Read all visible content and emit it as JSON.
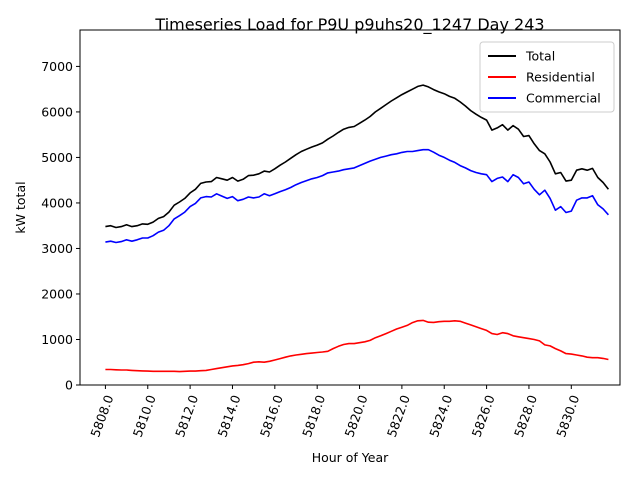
{
  "chart_data": {
    "type": "line",
    "title": "Timeseries Load for P9U p9uhs20_1247  Day 243",
    "xlabel": "Hour of Year",
    "ylabel": "kW total",
    "xlim": [
      5806.8,
      5832.3
    ],
    "ylim": [
      0,
      7800
    ],
    "xticks": [
      5808.0,
      5810.0,
      5812.0,
      5814.0,
      5816.0,
      5818.0,
      5820.0,
      5822.0,
      5824.0,
      5826.0,
      5828.0,
      5830.0
    ],
    "xtick_labels": [
      "5808.0",
      "5810.0",
      "5812.0",
      "5814.0",
      "5816.0",
      "5818.0",
      "5820.0",
      "5822.0",
      "5824.0",
      "5826.0",
      "5828.0",
      "5830.0"
    ],
    "yticks": [
      0,
      1000,
      2000,
      3000,
      4000,
      5000,
      6000,
      7000
    ],
    "ytick_labels": [
      "0",
      "1000",
      "2000",
      "3000",
      "4000",
      "5000",
      "6000",
      "7000"
    ],
    "legend_position": "top-right",
    "x": [
      5808.0,
      5808.25,
      5808.5,
      5808.75,
      5809.0,
      5809.25,
      5809.5,
      5809.75,
      5810.0,
      5810.25,
      5810.5,
      5810.75,
      5811.0,
      5811.25,
      5811.5,
      5811.75,
      5812.0,
      5812.25,
      5812.5,
      5812.75,
      5813.0,
      5813.25,
      5813.5,
      5813.75,
      5814.0,
      5814.25,
      5814.5,
      5814.75,
      5815.0,
      5815.25,
      5815.5,
      5815.75,
      5816.0,
      5816.25,
      5816.5,
      5816.75,
      5817.0,
      5817.25,
      5817.5,
      5817.75,
      5818.0,
      5818.25,
      5818.5,
      5818.75,
      5819.0,
      5819.25,
      5819.5,
      5819.75,
      5820.0,
      5820.25,
      5820.5,
      5820.75,
      5821.0,
      5821.25,
      5821.5,
      5821.75,
      5822.0,
      5822.25,
      5822.5,
      5822.75,
      5823.0,
      5823.25,
      5823.5,
      5823.75,
      5824.0,
      5824.25,
      5824.5,
      5824.75,
      5825.0,
      5825.25,
      5825.5,
      5825.75,
      5826.0,
      5826.25,
      5826.5,
      5826.75,
      5827.0,
      5827.25,
      5827.5,
      5827.75,
      5828.0,
      5828.25,
      5828.5,
      5828.75,
      5829.0,
      5829.25,
      5829.5,
      5829.75,
      5830.0,
      5830.25,
      5830.5,
      5830.75,
      5831.0,
      5831.25,
      5831.5,
      5831.75
    ],
    "series": [
      {
        "name": "Total",
        "color": "#000000",
        "values": [
          3480,
          3500,
          3460,
          3480,
          3520,
          3480,
          3500,
          3540,
          3530,
          3580,
          3660,
          3700,
          3800,
          3950,
          4020,
          4100,
          4220,
          4300,
          4430,
          4460,
          4470,
          4560,
          4530,
          4500,
          4560,
          4480,
          4520,
          4600,
          4610,
          4640,
          4700,
          4680,
          4750,
          4830,
          4900,
          4980,
          5060,
          5130,
          5180,
          5230,
          5270,
          5320,
          5400,
          5470,
          5550,
          5620,
          5660,
          5680,
          5750,
          5820,
          5900,
          6000,
          6080,
          6160,
          6240,
          6310,
          6380,
          6440,
          6500,
          6560,
          6590,
          6550,
          6490,
          6440,
          6400,
          6340,
          6300,
          6220,
          6130,
          6030,
          5950,
          5880,
          5820,
          5600,
          5650,
          5720,
          5600,
          5700,
          5620,
          5460,
          5480,
          5300,
          5150,
          5080,
          4900,
          4640,
          4670,
          4480,
          4500,
          4720,
          4750,
          4720,
          4760,
          4560,
          4450,
          4300
        ]
      },
      {
        "name": "Residential",
        "color": "#ff0000",
        "values": [
          340,
          340,
          335,
          330,
          330,
          320,
          315,
          310,
          305,
          300,
          300,
          300,
          300,
          300,
          295,
          300,
          305,
          305,
          315,
          320,
          340,
          360,
          380,
          400,
          420,
          430,
          445,
          470,
          500,
          510,
          500,
          520,
          550,
          580,
          610,
          640,
          660,
          675,
          690,
          700,
          715,
          725,
          740,
          800,
          850,
          890,
          910,
          910,
          930,
          950,
          980,
          1040,
          1080,
          1130,
          1180,
          1230,
          1270,
          1310,
          1370,
          1410,
          1420,
          1380,
          1375,
          1390,
          1400,
          1400,
          1410,
          1400,
          1360,
          1320,
          1280,
          1240,
          1200,
          1130,
          1110,
          1150,
          1130,
          1080,
          1060,
          1040,
          1020,
          1000,
          970,
          880,
          860,
          800,
          750,
          690,
          680,
          660,
          640,
          610,
          600,
          600,
          585,
          560
        ]
      },
      {
        "name": "Commercial",
        "color": "#0000ff",
        "values": [
          3140,
          3160,
          3130,
          3150,
          3190,
          3160,
          3190,
          3230,
          3230,
          3280,
          3360,
          3400,
          3500,
          3650,
          3720,
          3800,
          3920,
          3990,
          4110,
          4140,
          4130,
          4200,
          4150,
          4100,
          4140,
          4050,
          4080,
          4130,
          4110,
          4130,
          4200,
          4160,
          4200,
          4250,
          4290,
          4340,
          4400,
          4450,
          4490,
          4530,
          4560,
          4600,
          4660,
          4680,
          4700,
          4730,
          4750,
          4770,
          4820,
          4870,
          4920,
          4960,
          5000,
          5030,
          5060,
          5080,
          5110,
          5130,
          5130,
          5150,
          5170,
          5170,
          5115,
          5050,
          5000,
          4940,
          4890,
          4820,
          4770,
          4710,
          4670,
          4640,
          4620,
          4470,
          4540,
          4570,
          4470,
          4620,
          4560,
          4420,
          4460,
          4300,
          4180,
          4280,
          4100,
          3840,
          3920,
          3790,
          3820,
          4060,
          4110,
          4110,
          4160,
          3960,
          3870,
          3740
        ]
      }
    ]
  }
}
